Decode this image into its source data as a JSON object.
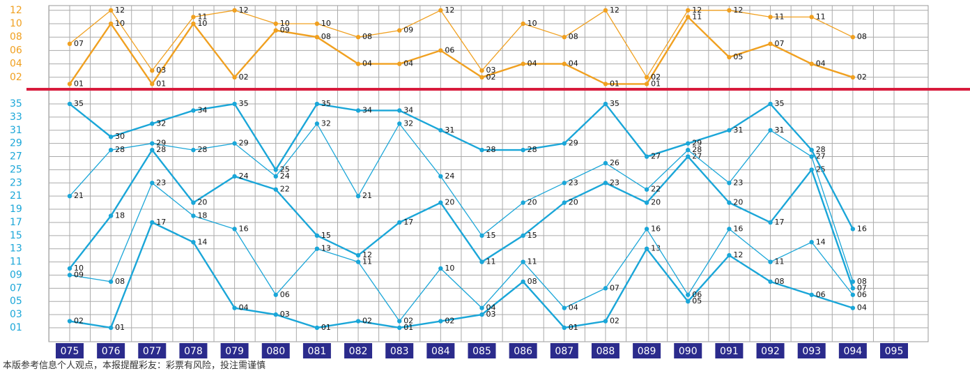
{
  "chart_data": [
    {
      "type": "line",
      "ylim": [
        0.5,
        12.5
      ],
      "yticks": [
        {
          "value": 2,
          "label": "02"
        },
        {
          "value": 4,
          "label": "04"
        },
        {
          "value": 6,
          "label": "06"
        },
        {
          "value": 8,
          "label": "08"
        },
        {
          "value": 10,
          "label": "10"
        },
        {
          "value": 12,
          "label": "12"
        }
      ],
      "grid": true,
      "series": [
        {
          "color": "#f0a020",
          "values": [
            1,
            10,
            1,
            10,
            2,
            9,
            8,
            4,
            4,
            6,
            2,
            4,
            4,
            1,
            1,
            11,
            5,
            7,
            4,
            2,
            null
          ],
          "value_labels": [
            "01",
            "10",
            "01",
            "10",
            "02",
            "09",
            "08",
            "04",
            "04",
            "06",
            "02",
            "04",
            "04",
            "01",
            "01",
            "11",
            "05",
            "07",
            "04",
            "02",
            null
          ]
        },
        {
          "color": "#f0a020",
          "values": [
            7,
            12,
            3,
            11,
            12,
            10,
            10,
            8,
            9,
            12,
            3,
            10,
            8,
            12,
            2,
            12,
            12,
            11,
            11,
            8,
            null
          ],
          "value_labels": [
            "07",
            "12",
            "03",
            "11",
            "12",
            "10",
            "10",
            "08",
            "09",
            "12",
            "03",
            "10",
            "08",
            "12",
            "02",
            "12",
            "12",
            "11",
            "11",
            "08",
            null
          ]
        }
      ]
    },
    {
      "type": "line",
      "ylim": [
        0,
        36
      ],
      "yticks": [
        {
          "value": 1,
          "label": "01"
        },
        {
          "value": 3,
          "label": "03"
        },
        {
          "value": 5,
          "label": "05"
        },
        {
          "value": 7,
          "label": "07"
        },
        {
          "value": 9,
          "label": "09"
        },
        11,
        13,
        15,
        17,
        19,
        21,
        23,
        25,
        27,
        29,
        31,
        33,
        35
      ],
      "grid": true,
      "categories": [
        "075",
        "076",
        "077",
        "078",
        "079",
        "080",
        "081",
        "082",
        "083",
        "084",
        "085",
        "086",
        "087",
        "088",
        "089",
        "090",
        "091",
        "092",
        "093",
        "094",
        "095"
      ],
      "series": [
        {
          "color": "#1aa6d8",
          "values": [
            2,
            1,
            17,
            14,
            4,
            3,
            1,
            2,
            1,
            2,
            3,
            8,
            1,
            2,
            13,
            5,
            12,
            8,
            6,
            4,
            null
          ],
          "value_labels": [
            "02",
            "01",
            "17",
            "14",
            "04",
            "03",
            "01",
            "02",
            "01",
            "02",
            "03",
            "08",
            "01",
            "02",
            "13",
            "05",
            "12",
            "08",
            "06",
            "04",
            null
          ]
        },
        {
          "color": "#1aa6d8",
          "values": [
            9,
            8,
            23,
            18,
            16,
            6,
            13,
            11,
            2,
            10,
            4,
            11,
            4,
            7,
            16,
            6,
            16,
            11,
            14,
            6,
            null
          ],
          "value_labels": [
            "09",
            "08",
            "23",
            "18",
            "16",
            "06",
            "13",
            "11",
            "02",
            "10",
            "04",
            "11",
            "04",
            "07",
            "16",
            "06",
            "16",
            "11",
            "14",
            "06",
            null
          ]
        },
        {
          "color": "#1aa6d8",
          "values": [
            10,
            18,
            28,
            20,
            24,
            22,
            15,
            12,
            17,
            20,
            11,
            15,
            20,
            23,
            20,
            27,
            20,
            17,
            25,
            7,
            null
          ],
          "value_labels": [
            "10",
            "18",
            "28",
            "20",
            "24",
            "22",
            "15",
            "12",
            "17",
            "20",
            "11",
            "15",
            "20",
            "23",
            "20",
            "27",
            "20",
            "17",
            "25",
            "07",
            null
          ]
        },
        {
          "color": "#1aa6d8",
          "values": [
            21,
            28,
            29,
            28,
            29,
            24,
            32,
            21,
            32,
            24,
            15,
            20,
            23,
            26,
            22,
            28,
            23,
            31,
            27,
            8,
            null
          ],
          "value_labels": [
            "21",
            "28",
            "29",
            "28",
            "29",
            "24",
            "32",
            "21",
            "32",
            "24",
            "15",
            "20",
            "23",
            "26",
            "22",
            "28",
            "23",
            "31",
            "27",
            "08",
            null
          ]
        },
        {
          "color": "#1aa6d8",
          "values": [
            35,
            30,
            32,
            34,
            35,
            25,
            35,
            34,
            34,
            31,
            28,
            28,
            29,
            35,
            27,
            29,
            31,
            35,
            28,
            16,
            null
          ],
          "value_labels": [
            "35",
            "30",
            "32",
            "34",
            "35",
            "25",
            "35",
            "34",
            "34",
            "31",
            "28",
            "28",
            "29",
            "35",
            "27",
            "29",
            "31",
            "35",
            "28",
            "16",
            null
          ]
        }
      ]
    }
  ],
  "footer": "本版参考信息个人观点，本报提醒彩友：彩票有风险，投注需谨慎"
}
